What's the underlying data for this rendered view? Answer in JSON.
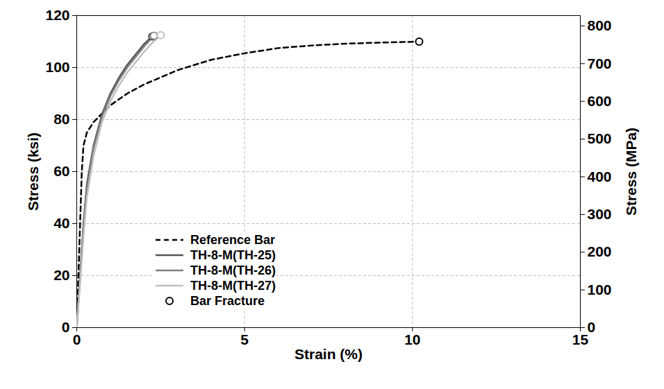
{
  "chart_data": {
    "type": "line",
    "x_label": "Strain (%)",
    "y_label": "Stress (ksi)",
    "y2_label": "Stress (MPa)",
    "xlim": [
      0,
      15
    ],
    "xticks": [
      0,
      5,
      10,
      15
    ],
    "ylim": [
      0,
      120
    ],
    "yticks": [
      0,
      20,
      40,
      60,
      80,
      100,
      120
    ],
    "y2lim": [
      0,
      827.37
    ],
    "y2ticks": [
      0,
      100,
      200,
      300,
      400,
      500,
      600,
      700,
      800
    ],
    "grid": true,
    "legend": "bottom",
    "series": [
      {
        "name": "Reference Bar",
        "type": "line",
        "color": "#000000",
        "line_style": "dashed",
        "x": [
          0,
          0.1,
          0.15,
          0.2,
          0.3,
          0.5,
          0.8,
          1,
          1.5,
          2,
          3,
          4,
          5,
          6,
          7,
          8,
          9,
          10.2
        ],
        "values": [
          0,
          40,
          60,
          70,
          75,
          79,
          83,
          85.5,
          90,
          93.5,
          99,
          103,
          105.5,
          107.5,
          108.5,
          109.2,
          109.6,
          110
        ]
      },
      {
        "name": "TH-8-M(TH-25)",
        "type": "line",
        "color": "#555555",
        "line_style": "solid",
        "x": [
          0,
          0.1,
          0.2,
          0.3,
          0.5,
          0.75,
          1,
          1.25,
          1.5,
          1.75,
          2,
          2.25
        ],
        "values": [
          0,
          20,
          40,
          55,
          70,
          82,
          90,
          96,
          101,
          105,
          109,
          112
        ]
      },
      {
        "name": "TH-8-M(TH-26)",
        "type": "line",
        "color": "#808080",
        "line_style": "solid",
        "x": [
          0,
          0.1,
          0.2,
          0.3,
          0.5,
          0.75,
          1,
          1.25,
          1.5,
          1.75,
          2,
          2.3
        ],
        "values": [
          0,
          19,
          38,
          53,
          69,
          81,
          89,
          95,
          100,
          104,
          108,
          112.3
        ]
      },
      {
        "name": "TH-8-M(TH-27)",
        "type": "line",
        "color": "#bfbfbf",
        "line_style": "solid",
        "x": [
          0,
          0.1,
          0.2,
          0.3,
          0.5,
          0.75,
          1,
          1.25,
          1.5,
          1.75,
          2,
          2.25,
          2.5
        ],
        "values": [
          0,
          17,
          35,
          50,
          66,
          79,
          87,
          93,
          98,
          102,
          106,
          109.5,
          112.5
        ]
      },
      {
        "name": "Bar Fracture",
        "type": "scatter",
        "marker": "circle",
        "color": "#000000",
        "colors": [
          "#404040",
          "#8c8c8c",
          "#bfbfbf",
          "#000000"
        ],
        "x": [
          2.25,
          2.3,
          2.5,
          10.2
        ],
        "values": [
          112,
          112.3,
          112.5,
          110
        ]
      }
    ]
  }
}
